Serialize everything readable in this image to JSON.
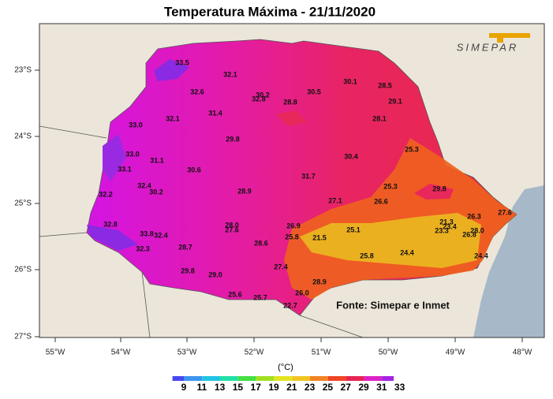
{
  "title": "Temperatura Máxima - 21/11/2020",
  "logo": "SIMEPAR",
  "source": "Fonte: Simepar e Inmet",
  "lat_labels": [
    "23°S",
    "24°S",
    "25°S",
    "26°S",
    "27°S"
  ],
  "lon_labels": [
    "55°W",
    "54°W",
    "53°W",
    "52°W",
    "51°W",
    "50°W",
    "49°W",
    "48°W"
  ],
  "colorbar": {
    "unit": "(°C)",
    "ticks": [
      "9",
      "11",
      "13",
      "15",
      "17",
      "19",
      "21",
      "23",
      "25",
      "27",
      "29",
      "31",
      "33"
    ],
    "colors": [
      "#4848f0",
      "#3c96f0",
      "#22c4e4",
      "#22e0a6",
      "#44e044",
      "#a4e022",
      "#e4e422",
      "#f2c424",
      "#f28424",
      "#f04424",
      "#e62454",
      "#de22c6",
      "#a424e2"
    ]
  },
  "stations": [
    "33.5",
    "32.1",
    "30.1",
    "28.5",
    "32.6",
    "30.2",
    "32.8",
    "30.5",
    "28.8",
    "29.1",
    "31.4",
    "32.1",
    "28.1",
    "33.0",
    "29.8",
    "25.3",
    "33.0",
    "31.1",
    "30.4",
    "33.1",
    "30.6",
    "31.7",
    "32.4",
    "25.3",
    "29.8",
    "30.2",
    "28.9",
    "32.2",
    "27.1",
    "26.6",
    "26.3",
    "27.6",
    "32.8",
    "21.3",
    "23.4",
    "23.3",
    "28.0",
    "27.6",
    "26.9",
    "25.1",
    "28.0",
    "26.8",
    "33.8",
    "32.4",
    "25.8",
    "21.5",
    "28.7",
    "28.6",
    "32.3",
    "24.4",
    "25.8",
    "24.4",
    "27.4",
    "29.8",
    "29.0",
    "28.9",
    "26.0",
    "25.6",
    "25.7",
    "22.7"
  ]
}
